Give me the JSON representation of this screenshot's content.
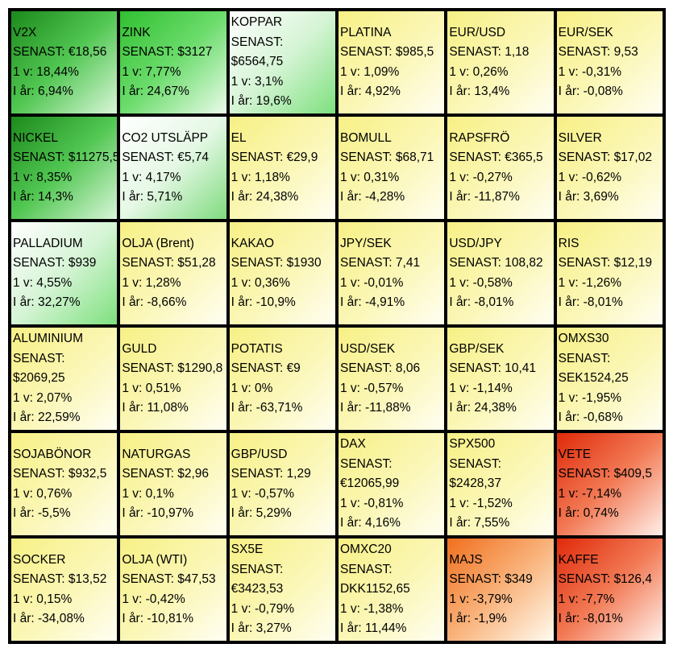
{
  "cells": [
    {
      "name": "V2X",
      "senast": "SENAST: €18,56",
      "vecka": "1 v: 18,44%",
      "ar": "I år: 6,94%",
      "tone": "g1"
    },
    {
      "name": "ZINK",
      "senast": "SENAST: $3127",
      "vecka": "1 v: 7,77%",
      "ar": "I år: 24,67%",
      "tone": "g2"
    },
    {
      "name": "KOPPAR",
      "senast": "SENAST:",
      "senast2": "$6564,75",
      "vecka": "1 v: 3,1%",
      "ar": "I år: 19,6%",
      "tone": "g4"
    },
    {
      "name": "PLATINA",
      "senast": "SENAST: $985,5",
      "vecka": "1 v: 1,09%",
      "ar": "I år: 4,92%",
      "tone": "y"
    },
    {
      "name": "EUR/USD",
      "senast": "SENAST: 1,18",
      "vecka": "1 v: 0,26%",
      "ar": "I år: 13,4%",
      "tone": "y"
    },
    {
      "name": "EUR/SEK",
      "senast": "SENAST: 9,53",
      "vecka": "1 v: -0,31%",
      "ar": "I år: -0,08%",
      "tone": "y"
    },
    {
      "name": "NICKEL",
      "senast": "SENAST: $11275,5",
      "vecka": "1 v: 8,35%",
      "ar": "I år: 14,3%",
      "tone": "g1"
    },
    {
      "name": "CO2 UTSLÄPP",
      "senast": "SENAST: €5,74",
      "vecka": "1 v: 4,17%",
      "ar": "I år: 5,71%",
      "tone": "g5"
    },
    {
      "name": "EL",
      "senast": "SENAST: €29,9",
      "vecka": "1 v: 1,18%",
      "ar": "I år: 24,38%",
      "tone": "y"
    },
    {
      "name": "BOMULL",
      "senast": "SENAST: $68,71",
      "vecka": "1 v: 0,31%",
      "ar": "I år: -4,28%",
      "tone": "y"
    },
    {
      "name": "RAPSFRÖ",
      "senast": "SENAST: €365,5",
      "vecka": "1 v: -0,27%",
      "ar": "I år: -11,87%",
      "tone": "y"
    },
    {
      "name": "SILVER",
      "senast": "SENAST: $17,02",
      "vecka": "1 v: -0,62%",
      "ar": "I år: 3,69%",
      "tone": "y"
    },
    {
      "name": "PALLADIUM",
      "senast": "SENAST: $939",
      "vecka": "1 v: 4,55%",
      "ar": "I år: 32,27%",
      "tone": "g4"
    },
    {
      "name": "OLJA (Brent)",
      "senast": "SENAST: $51,28",
      "vecka": "1 v: 1,28%",
      "ar": "I år: -8,66%",
      "tone": "y"
    },
    {
      "name": "KAKAO",
      "senast": "SENAST: $1930",
      "vecka": "1 v: 0,36%",
      "ar": "I år: -10,9%",
      "tone": "y"
    },
    {
      "name": "JPY/SEK",
      "senast": "SENAST: 7,41",
      "vecka": "1 v: -0,01%",
      "ar": "I år: -4,91%",
      "tone": "y"
    },
    {
      "name": "USD/JPY",
      "senast": "SENAST: 108,82",
      "vecka": "1 v: -0,58%",
      "ar": "I år: -8,01%",
      "tone": "y"
    },
    {
      "name": "RIS",
      "senast": "SENAST: $12,19",
      "vecka": "1 v: -1,26%",
      "ar": "I år: -8,01%",
      "tone": "y"
    },
    {
      "name": "ALUMINIUM",
      "senast": "SENAST:",
      "senast2": "$2069,25",
      "vecka": "1 v: 2,07%",
      "ar": "I år: 22,59%",
      "tone": "y"
    },
    {
      "name": "GULD",
      "senast": "SENAST: $1290,8",
      "vecka": "1 v: 0,51%",
      "ar": "I år: 11,08%",
      "tone": "y"
    },
    {
      "name": "POTATIS",
      "senast": "SENAST: €9",
      "vecka": "1 v: 0%",
      "ar": "I år: -63,71%",
      "tone": "y"
    },
    {
      "name": "USD/SEK",
      "senast": "SENAST: 8,06",
      "vecka": "1 v: -0,57%",
      "ar": "I år: -11,88%",
      "tone": "y"
    },
    {
      "name": "GBP/SEK",
      "senast": "SENAST: 10,41",
      "vecka": "1 v: -1,14%",
      "ar": "I år: 24,38%",
      "tone": "y"
    },
    {
      "name": "OMXS30",
      "senast": "SENAST:",
      "senast2": "SEK1524,25",
      "vecka": "1 v: -1,95%",
      "ar": "I år: -0,68%",
      "tone": "y"
    },
    {
      "name": "SOJABÖNOR",
      "senast": "SENAST: $932,5",
      "vecka": "1 v: 0,76%",
      "ar": "I år: -5,5%",
      "tone": "y"
    },
    {
      "name": "NATURGAS",
      "senast": "SENAST: $2,96",
      "vecka": "1 v: 0,1%",
      "ar": "I år: -10,97%",
      "tone": "y"
    },
    {
      "name": "GBP/USD",
      "senast": "SENAST: 1,29",
      "vecka": "1 v: -0,57%",
      "ar": "I år: 5,29%",
      "tone": "y"
    },
    {
      "name": "DAX",
      "senast": "SENAST:",
      "senast2": "€12065,99",
      "vecka": "1 v: -0,81%",
      "ar": "I år: 4,16%",
      "tone": "y"
    },
    {
      "name": "SPX500",
      "senast": "SENAST:",
      "senast2": "$2428,37",
      "vecka": "1 v: -1,52%",
      "ar": "I år: 7,55%",
      "tone": "y"
    },
    {
      "name": "VETE",
      "senast": "SENAST: $409,5",
      "vecka": "1 v: -7,14%",
      "ar": "I år: 0,74%",
      "tone": "r1"
    },
    {
      "name": "SOCKER",
      "senast": "SENAST: $13,52",
      "vecka": "1 v: 0,15%",
      "ar": "I år: -34,08%",
      "tone": "y"
    },
    {
      "name": "OLJA (WTI)",
      "senast": "SENAST: $47,53",
      "vecka": "1 v: -0,42%",
      "ar": "I år: -10,81%",
      "tone": "y"
    },
    {
      "name": "SX5E",
      "senast": "SENAST:",
      "senast2": "€3423,53",
      "vecka": "1 v: -0,79%",
      "ar": "I år: 3,27%",
      "tone": "y"
    },
    {
      "name": "OMXC20",
      "senast": "SENAST:",
      "senast2": "DKK1152,65",
      "vecka": "1 v: -1,38%",
      "ar": "I år: 11,44%",
      "tone": "y"
    },
    {
      "name": "MAJS",
      "senast": "SENAST: $349",
      "vecka": "1 v: -3,79%",
      "ar": "I år: -1,9%",
      "tone": "r2"
    },
    {
      "name": "KAFFE",
      "senast": "SENAST: $126,4",
      "vecka": "1 v: -7,7%",
      "ar": "I år: -8,01%",
      "tone": "r1"
    }
  ]
}
